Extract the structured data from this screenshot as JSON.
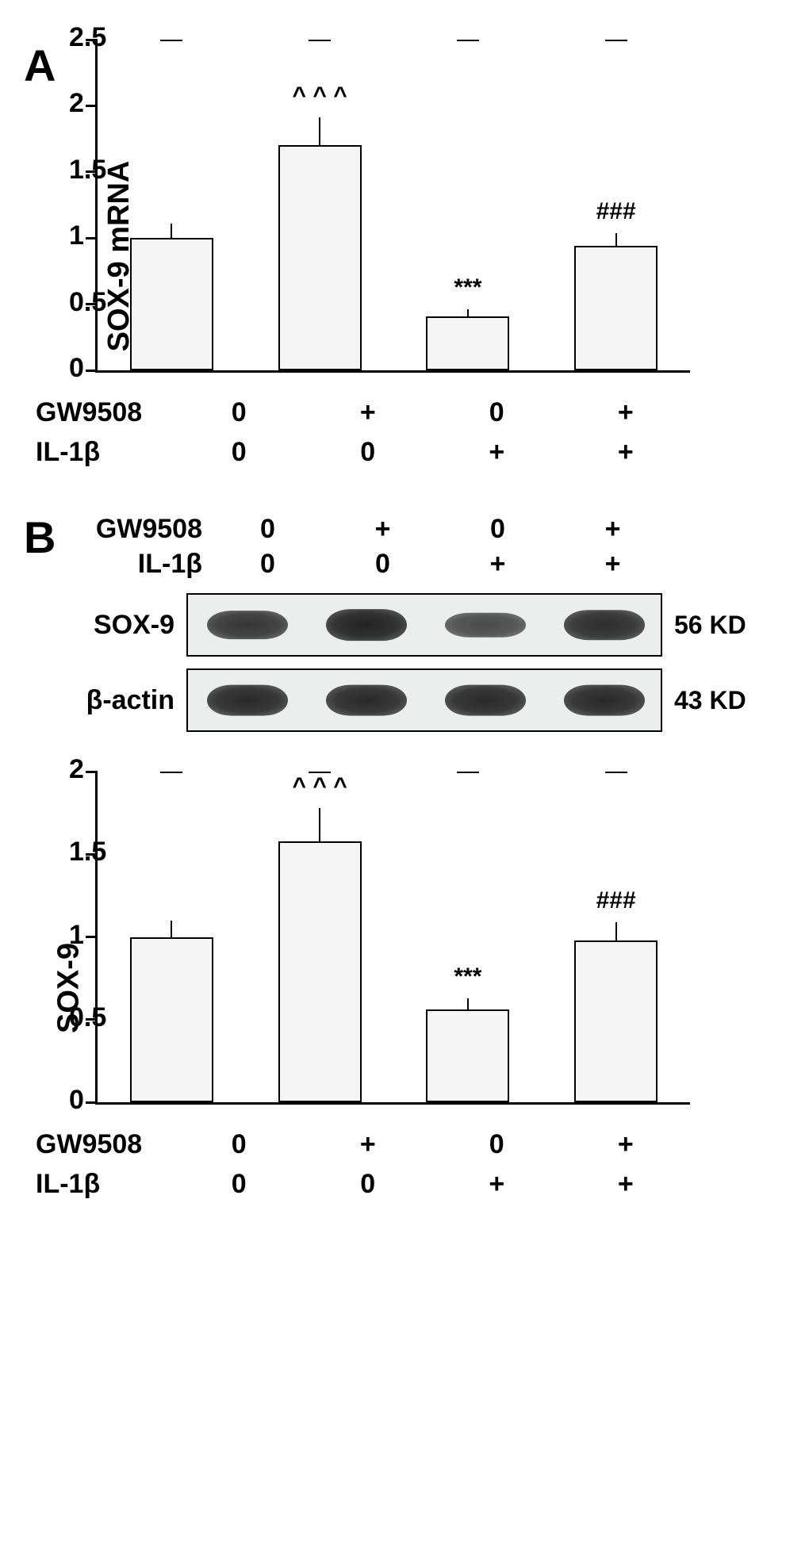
{
  "panelA": {
    "label": "A",
    "chart": {
      "type": "bar",
      "y_axis_label": "SOX-9 mRNA",
      "ylim": [
        0,
        2.5
      ],
      "ytick_step": 0.5,
      "yticks": [
        "0",
        "0.5",
        "1",
        "1.5",
        "2",
        "2.5"
      ],
      "bar_color": "#f5f5f5",
      "bar_border": "#000000",
      "bars": [
        {
          "value": 1.0,
          "error": 0.11,
          "sig": ""
        },
        {
          "value": 1.7,
          "error": 0.21,
          "sig": "^ ^ ^"
        },
        {
          "value": 0.41,
          "error": 0.05,
          "sig": "***"
        },
        {
          "value": 0.94,
          "error": 0.1,
          "sig": "###"
        }
      ]
    },
    "treatments": {
      "rows": [
        {
          "label": "GW9508",
          "cells": [
            "0",
            "+",
            "0",
            "+"
          ]
        },
        {
          "label": "IL-1β",
          "cells": [
            "0",
            "0",
            "+",
            "+"
          ]
        }
      ]
    }
  },
  "panelB": {
    "label": "B",
    "treatments_top": {
      "rows": [
        {
          "label": "GW9508",
          "cells": [
            "0",
            "+",
            "0",
            "+"
          ]
        },
        {
          "label": "IL-1β",
          "cells": [
            "0",
            "0",
            "+",
            "+"
          ]
        }
      ]
    },
    "blots": [
      {
        "protein": "SOX-9",
        "size": "56 KD",
        "intensities": [
          0.72,
          0.9,
          0.48,
          0.8
        ]
      },
      {
        "protein": "β-actin",
        "size": "43 KD",
        "intensities": [
          0.85,
          0.85,
          0.85,
          0.85
        ]
      }
    ],
    "chart": {
      "type": "bar",
      "y_axis_label": "SOX-9",
      "ylim": [
        0,
        2.0
      ],
      "ytick_step": 0.5,
      "yticks": [
        "0",
        "0.5",
        "1",
        "1.5",
        "2"
      ],
      "bar_color": "#f5f5f5",
      "bar_border": "#000000",
      "bars": [
        {
          "value": 1.0,
          "error": 0.1,
          "sig": ""
        },
        {
          "value": 1.58,
          "error": 0.2,
          "sig": "^ ^ ^"
        },
        {
          "value": 0.56,
          "error": 0.07,
          "sig": "***"
        },
        {
          "value": 0.98,
          "error": 0.11,
          "sig": "###"
        }
      ]
    },
    "treatments_bottom": {
      "rows": [
        {
          "label": "GW9508",
          "cells": [
            "0",
            "+",
            "0",
            "+"
          ]
        },
        {
          "label": "IL-1β",
          "cells": [
            "0",
            "0",
            "+",
            "+"
          ]
        }
      ]
    }
  },
  "styling": {
    "background_color": "#ffffff",
    "axis_color": "#000000",
    "axis_width": 3,
    "font_family": "Arial",
    "panel_label_fontsize": 56,
    "axis_label_fontsize": 38,
    "tick_fontsize": 34,
    "treatment_fontsize": 34,
    "sig_fontsize": 30
  }
}
